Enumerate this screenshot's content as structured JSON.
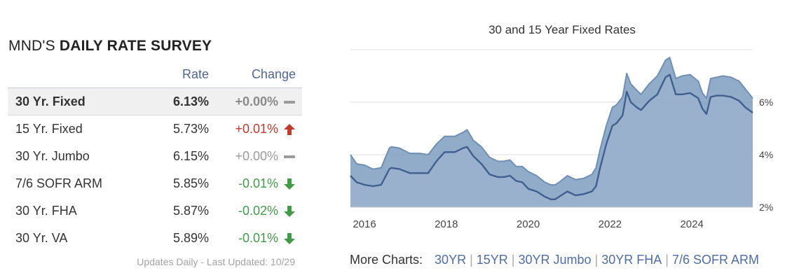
{
  "survey": {
    "title_prefix": "MND'S",
    "title_strong": "DAILY RATE SURVEY",
    "col_rate": "Rate",
    "col_change": "Change",
    "rows": [
      {
        "name": "30 Yr. Fixed",
        "rate": "6.13%",
        "change": "+0.00%",
        "direction": "neutral",
        "icon": "dash-icon",
        "selected": true
      },
      {
        "name": "15 Yr. Fixed",
        "rate": "5.73%",
        "change": "+0.01%",
        "direction": "up",
        "icon": "arrow-up-icon",
        "selected": false
      },
      {
        "name": "30 Yr. Jumbo",
        "rate": "6.15%",
        "change": "+0.00%",
        "direction": "neutral",
        "icon": "dash-icon",
        "selected": false
      },
      {
        "name": "7/6 SOFR ARM",
        "rate": "5.85%",
        "change": "-0.01%",
        "direction": "down",
        "icon": "arrow-down-icon",
        "selected": false
      },
      {
        "name": "30 Yr. FHA",
        "rate": "5.87%",
        "change": "-0.02%",
        "direction": "down",
        "icon": "arrow-down-icon",
        "selected": false
      },
      {
        "name": "30 Yr. VA",
        "rate": "5.89%",
        "change": "-0.01%",
        "direction": "down",
        "icon": "arrow-down-icon",
        "selected": false
      }
    ],
    "updated": "Updates Daily - Last Updated: 10/29"
  },
  "colors": {
    "header_blue": "#4e6694",
    "up_red": "#c0392b",
    "down_green": "#3f9b46",
    "neutral_gray": "#9a9a9a",
    "area_30yr": "#7e9ec0",
    "area_15yr": "#a0b7cf",
    "line_30yr": "#6f8fb4",
    "line_15yr": "#3f5f90"
  },
  "chart_data": {
    "type": "area",
    "title": "30 and 15 Year Fixed Rates",
    "xlabel": "",
    "ylabel": "",
    "x_ticks": [
      "2016",
      "2018",
      "2020",
      "2022",
      "2024"
    ],
    "y_ticks": [
      "2%",
      "4%",
      "6%"
    ],
    "xlim": [
      2016.0,
      2025.83
    ],
    "ylim": [
      2,
      8
    ],
    "grid": true,
    "y_axis_side": "right",
    "series": [
      {
        "x": [
          2016.0,
          2016.15,
          2016.35,
          2016.55,
          2016.75,
          2016.95,
          2017.0,
          2017.2,
          2017.45,
          2017.7,
          2017.9,
          2018.1,
          2018.3,
          2018.55,
          2018.75,
          2018.85,
          2019.0,
          2019.2,
          2019.4,
          2019.6,
          2019.75,
          2019.9,
          2020.05,
          2020.2,
          2020.35,
          2020.55,
          2020.75,
          2020.9,
          2021.0,
          2021.1,
          2021.3,
          2021.5,
          2021.7,
          2021.9,
          2022.0,
          2022.1,
          2022.25,
          2022.4,
          2022.5,
          2022.65,
          2022.75,
          2022.85,
          2023.0,
          2023.1,
          2023.3,
          2023.5,
          2023.7,
          2023.8,
          2023.95,
          2024.1,
          2024.3,
          2024.5,
          2024.6,
          2024.7,
          2024.8,
          2024.95,
          2025.1,
          2025.3,
          2025.5,
          2025.65,
          2025.83
        ],
        "values": [
          4.0,
          3.65,
          3.6,
          3.45,
          3.5,
          4.25,
          4.3,
          4.25,
          4.05,
          4.05,
          4.0,
          4.4,
          4.7,
          4.7,
          4.85,
          4.95,
          4.55,
          4.3,
          3.9,
          3.75,
          3.75,
          3.8,
          3.55,
          3.55,
          3.35,
          3.2,
          2.95,
          2.85,
          2.85,
          2.95,
          3.2,
          3.05,
          3.1,
          3.25,
          3.5,
          4.2,
          5.1,
          5.8,
          5.9,
          6.2,
          7.1,
          6.7,
          6.45,
          6.3,
          6.7,
          7.0,
          7.6,
          7.7,
          6.9,
          7.0,
          7.05,
          6.8,
          6.35,
          6.15,
          6.9,
          6.95,
          7.0,
          6.95,
          6.8,
          6.5,
          6.15
        ]
      },
      {
        "x": [
          2016.0,
          2016.15,
          2016.35,
          2016.55,
          2016.75,
          2016.95,
          2017.0,
          2017.2,
          2017.45,
          2017.7,
          2017.9,
          2018.1,
          2018.3,
          2018.55,
          2018.75,
          2018.85,
          2019.0,
          2019.2,
          2019.4,
          2019.6,
          2019.75,
          2019.9,
          2020.05,
          2020.2,
          2020.35,
          2020.55,
          2020.75,
          2020.9,
          2021.0,
          2021.1,
          2021.3,
          2021.5,
          2021.7,
          2021.9,
          2022.0,
          2022.1,
          2022.25,
          2022.4,
          2022.5,
          2022.65,
          2022.75,
          2022.85,
          2023.0,
          2023.1,
          2023.3,
          2023.5,
          2023.7,
          2023.8,
          2023.95,
          2024.1,
          2024.3,
          2024.5,
          2024.6,
          2024.7,
          2024.8,
          2024.95,
          2025.1,
          2025.3,
          2025.5,
          2025.65,
          2025.83
        ],
        "values": [
          3.2,
          2.95,
          2.85,
          2.8,
          2.85,
          3.45,
          3.5,
          3.45,
          3.3,
          3.3,
          3.3,
          3.75,
          4.1,
          4.1,
          4.25,
          4.3,
          3.95,
          3.65,
          3.25,
          3.15,
          3.15,
          3.2,
          3.0,
          2.95,
          2.7,
          2.6,
          2.4,
          2.3,
          2.3,
          2.4,
          2.6,
          2.45,
          2.5,
          2.6,
          2.8,
          3.5,
          4.4,
          5.1,
          5.2,
          5.5,
          6.4,
          6.0,
          5.8,
          5.7,
          6.05,
          6.3,
          6.95,
          7.05,
          6.3,
          6.3,
          6.35,
          6.15,
          5.75,
          5.55,
          6.2,
          6.25,
          6.25,
          6.2,
          6.05,
          5.8,
          5.6
        ]
      }
    ]
  },
  "more_charts": {
    "label": "More Charts:",
    "links": [
      "30YR",
      "15YR",
      "30YR Jumbo",
      "30YR FHA",
      "7/6 SOFR ARM"
    ],
    "separator": "|"
  }
}
